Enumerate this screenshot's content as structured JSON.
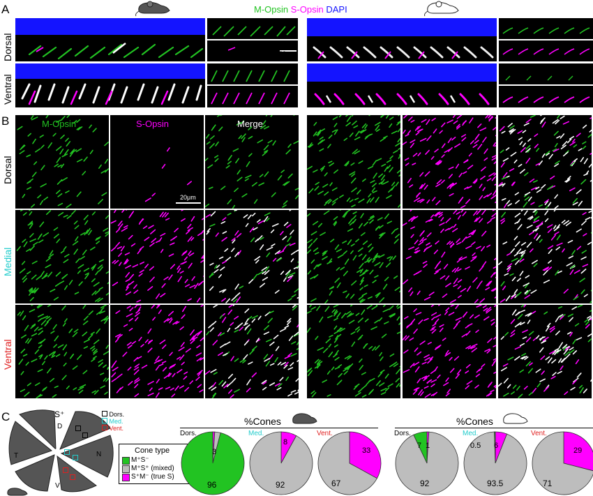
{
  "panel_labels": [
    "A",
    "B",
    "C"
  ],
  "channel_legend": {
    "m": "M-Opsin",
    "s": "S-Opsin",
    "dapi": "DAPI"
  },
  "row_labels": {
    "dorsal": "Dorsal",
    "ventral": "Ventral",
    "medial": "Medial"
  },
  "b_column_titles": [
    "M-Opsin",
    "S-Opsin",
    "Merge"
  ],
  "scalebar_label": "20μm",
  "retina_map": {
    "s_label": "S⁺",
    "letters": {
      "d": "D",
      "t": "T",
      "n": "N",
      "v": "V"
    },
    "box_legend": [
      "Dors.",
      "Med.",
      "Vent."
    ]
  },
  "cone_legend": {
    "title": "Cone type",
    "items": [
      {
        "label": "M⁺S⁻",
        "color": "#22c322"
      },
      {
        "label": "M⁺S⁺ (mixed)",
        "color": "#bdbdbd"
      },
      {
        "label": "S⁺M⁻ (true S)",
        "color": "#ff00ff"
      }
    ]
  },
  "colors": {
    "green": "#22c322",
    "magenta": "#ff00ff",
    "gray": "#bdbdbd",
    "blue": "#1414ff",
    "cyan": "#22cccc",
    "red": "#e02020"
  },
  "chart_data": [
    {
      "type": "pie",
      "title": "%Cones",
      "mouse": "dark",
      "pies": [
        {
          "label": "Dors.",
          "label_color": "#000000",
          "values": {
            "green": 96,
            "gray": 3,
            "magenta": 1
          },
          "texts": [
            "96",
            "3"
          ]
        },
        {
          "label": "Med.",
          "label_color": "#22cccc",
          "values": {
            "green": 0,
            "gray": 92,
            "magenta": 8
          },
          "texts": [
            "92",
            "8"
          ]
        },
        {
          "label": "Vent.",
          "label_color": "#e02020",
          "values": {
            "green": 0,
            "gray": 67,
            "magenta": 33
          },
          "texts": [
            "67",
            "33"
          ]
        }
      ]
    },
    {
      "type": "pie",
      "title": "%Cones",
      "mouse": "white",
      "pies": [
        {
          "label": "Dors.",
          "label_color": "#000000",
          "values": {
            "green": 7,
            "gray": 92,
            "magenta": 1
          },
          "texts": [
            "92",
            "7",
            "1"
          ]
        },
        {
          "label": "Med.",
          "label_color": "#22cccc",
          "values": {
            "green": 0.5,
            "gray": 93.5,
            "magenta": 6
          },
          "texts": [
            "93.5",
            "0.5",
            "6"
          ]
        },
        {
          "label": "Vent.",
          "label_color": "#e02020",
          "values": {
            "green": 0,
            "gray": 71,
            "magenta": 29
          },
          "texts": [
            "71",
            "29"
          ]
        }
      ]
    }
  ]
}
